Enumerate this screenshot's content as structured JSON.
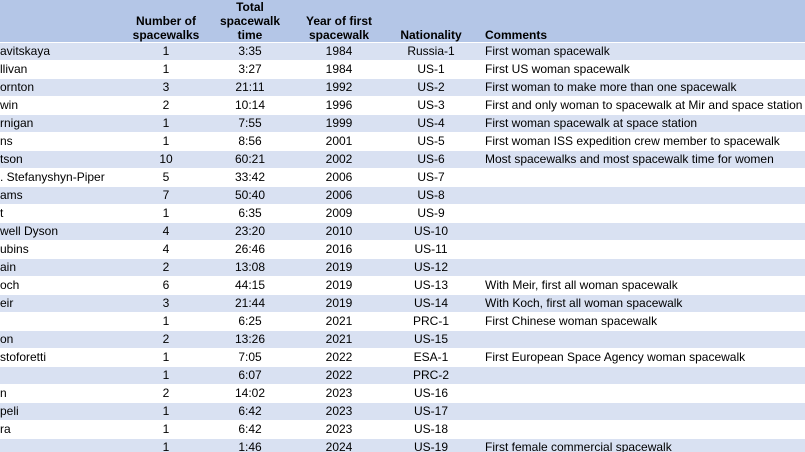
{
  "header": {
    "name": "",
    "spacewalks": "Number of spacewalks",
    "time": "Total spacewalk time",
    "year": "Year of first spacewalk",
    "nationality": "Nationality",
    "comments": "Comments"
  },
  "rows": [
    {
      "name": "avitskaya",
      "spacewalks": "1",
      "time": "3:35",
      "year": "1984",
      "nationality": "Russia-1",
      "comment": "First woman spacewalk"
    },
    {
      "name": "llivan",
      "spacewalks": "1",
      "time": "3:27",
      "year": "1984",
      "nationality": "US-1",
      "comment": "First US woman spacewalk"
    },
    {
      "name": "ornton",
      "spacewalks": "3",
      "time": "21:11",
      "year": "1992",
      "nationality": "US-2",
      "comment": "First woman to make more than one spacewalk"
    },
    {
      "name": "win",
      "spacewalks": "2",
      "time": "10:14",
      "year": "1996",
      "nationality": "US-3",
      "comment": "First and only woman to spacewalk at Mir and space station"
    },
    {
      "name": "rnigan",
      "spacewalks": "1",
      "time": "7:55",
      "year": "1999",
      "nationality": "US-4",
      "comment": "First woman spacewalk at space station"
    },
    {
      "name": "ns",
      "spacewalks": "1",
      "time": "8:56",
      "year": "2001",
      "nationality": "US-5",
      "comment": "First woman ISS expedition crew member to spacewalk"
    },
    {
      "name": "tson",
      "spacewalks": "10",
      "time": "60:21",
      "year": "2002",
      "nationality": "US-6",
      "comment": "Most spacewalks and most spacewalk time for women"
    },
    {
      "name": ". Stefanyshyn-Piper",
      "spacewalks": "5",
      "time": "33:42",
      "year": "2006",
      "nationality": "US-7",
      "comment": ""
    },
    {
      "name": "ams",
      "spacewalks": "7",
      "time": "50:40",
      "year": "2006",
      "nationality": "US-8",
      "comment": ""
    },
    {
      "name": "t",
      "spacewalks": "1",
      "time": "6:35",
      "year": "2009",
      "nationality": "US-9",
      "comment": ""
    },
    {
      "name": "well Dyson",
      "spacewalks": "4",
      "time": "23:20",
      "year": "2010",
      "nationality": "US-10",
      "comment": ""
    },
    {
      "name": "ubins",
      "spacewalks": "4",
      "time": "26:46",
      "year": "2016",
      "nationality": "US-11",
      "comment": ""
    },
    {
      "name": "ain",
      "spacewalks": "2",
      "time": "13:08",
      "year": "2019",
      "nationality": "US-12",
      "comment": ""
    },
    {
      "name": "och",
      "spacewalks": "6",
      "time": "44:15",
      "year": "2019",
      "nationality": "US-13",
      "comment": "With Meir, first all woman spacewalk"
    },
    {
      "name": "eir",
      "spacewalks": "3",
      "time": "21:44",
      "year": "2019",
      "nationality": "US-14",
      "comment": "With Koch, first all woman spacewalk"
    },
    {
      "name": "",
      "spacewalks": "1",
      "time": "6:25",
      "year": "2021",
      "nationality": "PRC-1",
      "comment": "First Chinese woman spacewalk"
    },
    {
      "name": "on",
      "spacewalks": "2",
      "time": "13:26",
      "year": "2021",
      "nationality": "US-15",
      "comment": ""
    },
    {
      "name": "stoforetti",
      "spacewalks": "1",
      "time": "7:05",
      "year": "2022",
      "nationality": "ESA-1",
      "comment": "First European Space Agency woman spacewalk"
    },
    {
      "name": "",
      "spacewalks": "1",
      "time": "6:07",
      "year": "2022",
      "nationality": "PRC-2",
      "comment": ""
    },
    {
      "name": "n",
      "spacewalks": "2",
      "time": "14:02",
      "year": "2023",
      "nationality": "US-16",
      "comment": ""
    },
    {
      "name": "peli",
      "spacewalks": "1",
      "time": "6:42",
      "year": "2023",
      "nationality": "US-17",
      "comment": ""
    },
    {
      "name": "ra",
      "spacewalks": "1",
      "time": "6:42",
      "year": "2023",
      "nationality": "US-18",
      "comment": ""
    },
    {
      "name": "",
      "spacewalks": "1",
      "time": "1:46",
      "year": "2024",
      "nationality": "US-19",
      "comment": "First female commercial spacewalk"
    }
  ]
}
